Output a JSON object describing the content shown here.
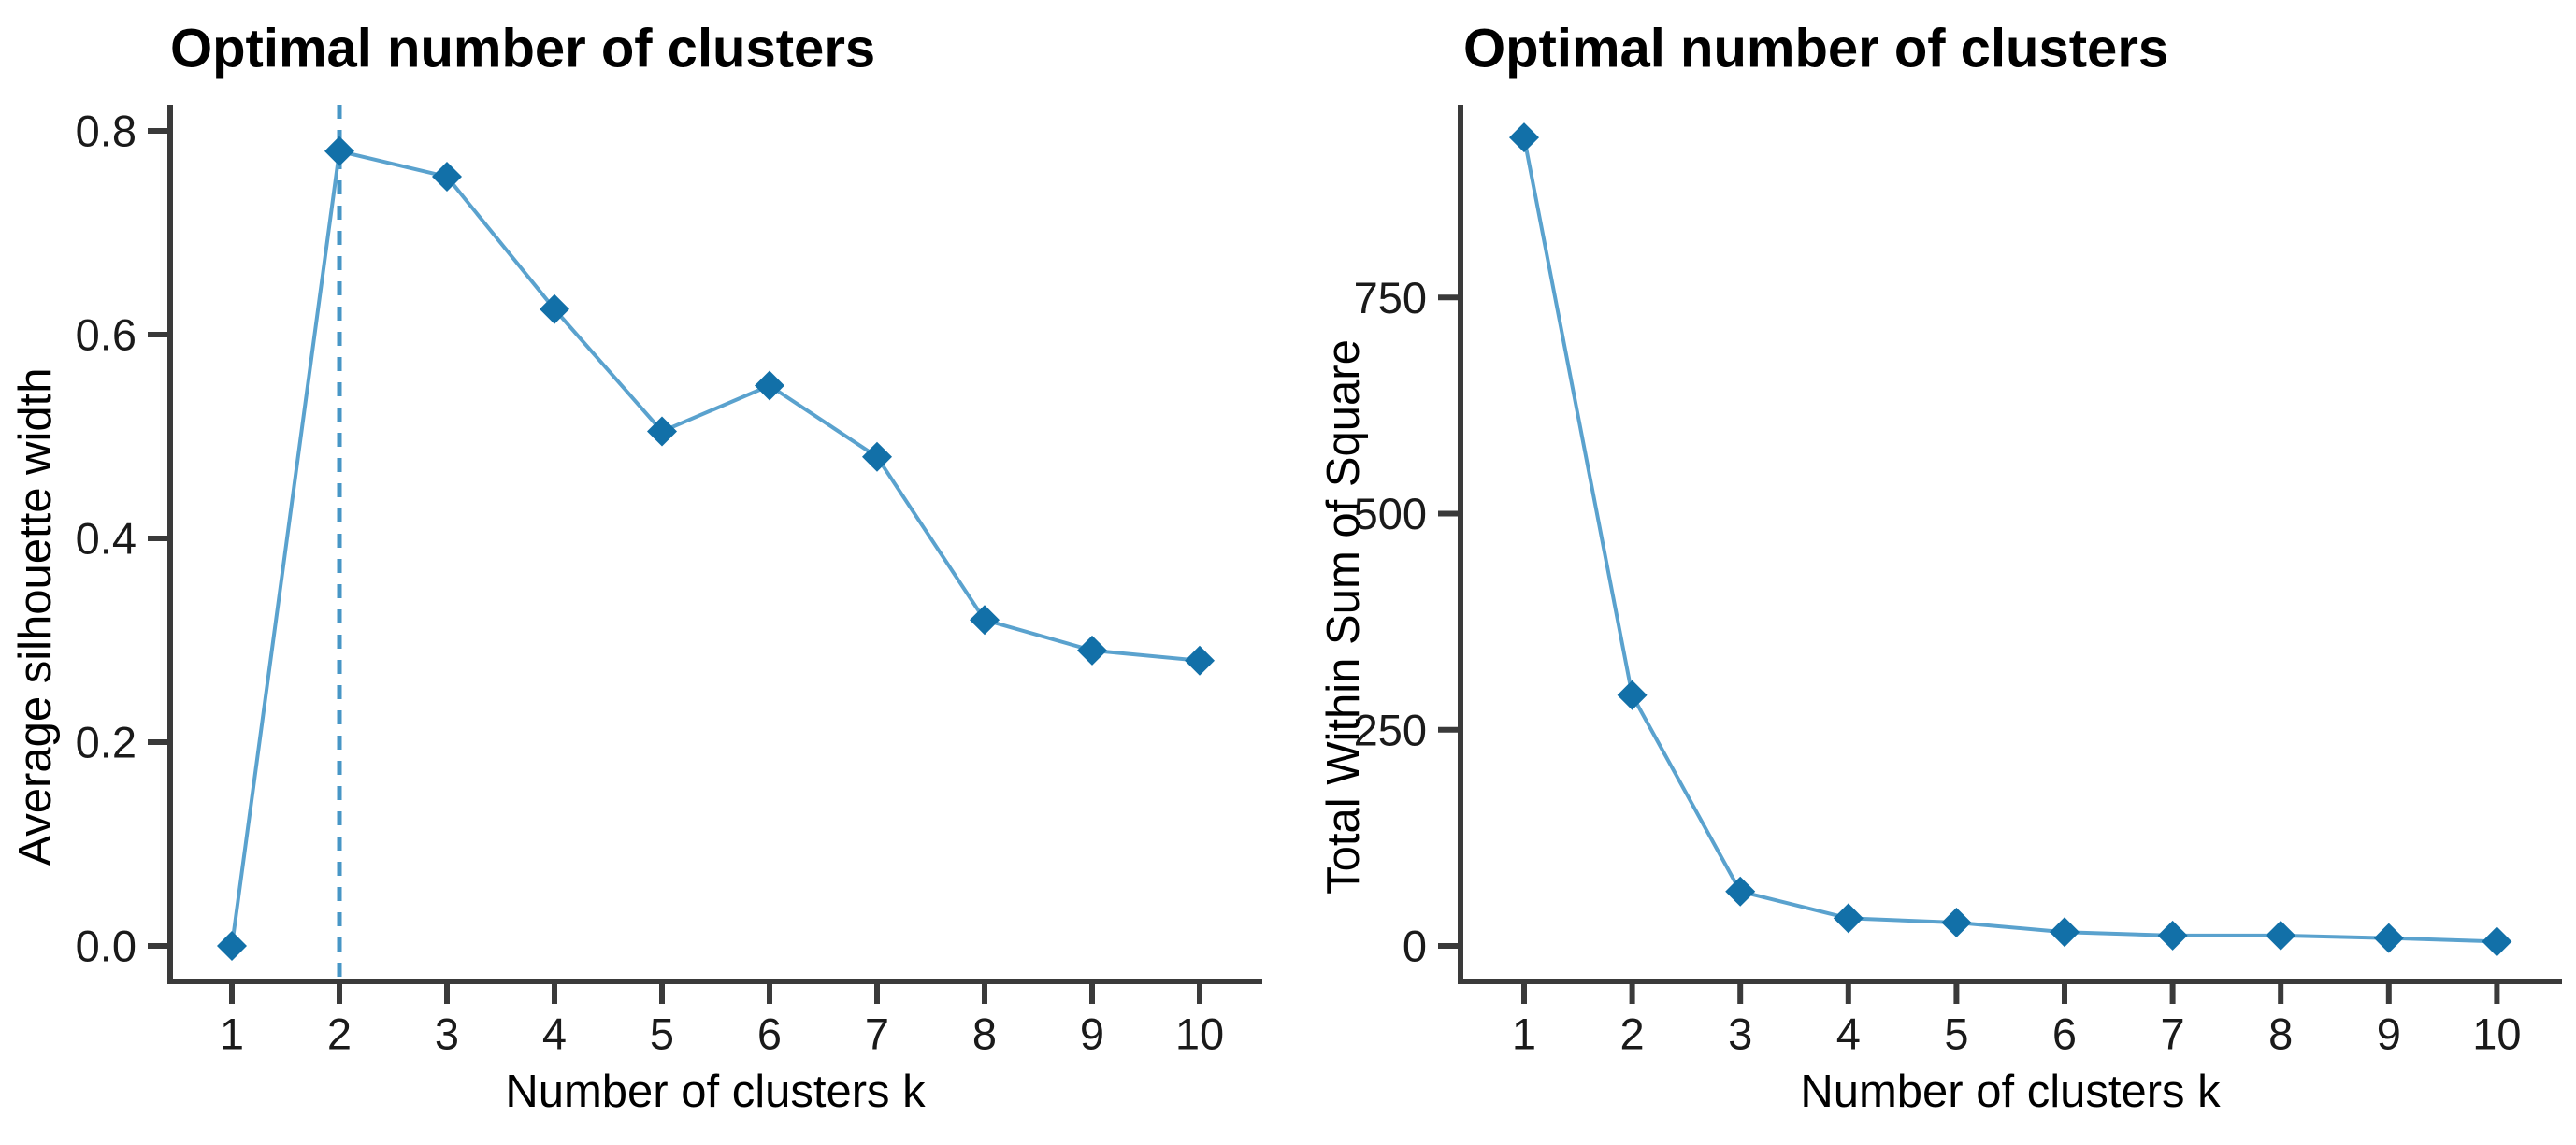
{
  "figure": {
    "background": "#ffffff",
    "description_colors": {
      "line": "#5aa2ce",
      "marker": "#1270a8",
      "vline": "#4796c6",
      "axis": "#3a3a3a",
      "tick_text": "#1a1a1a",
      "title_text": "#000000"
    }
  },
  "chart_data": [
    {
      "type": "line",
      "title": "Optimal number of clusters",
      "xlabel": "Number of clusters k",
      "ylabel": "Average silhouette width",
      "x": [
        1,
        2,
        3,
        4,
        5,
        6,
        7,
        8,
        9,
        10
      ],
      "y": [
        0.0,
        0.78,
        0.755,
        0.625,
        0.505,
        0.55,
        0.48,
        0.32,
        0.29,
        0.28
      ],
      "xtick_labels": [
        "1",
        "2",
        "3",
        "4",
        "5",
        "6",
        "7",
        "8",
        "9",
        "10"
      ],
      "ytick_values": [
        0.0,
        0.2,
        0.4,
        0.6,
        0.8
      ],
      "ytick_labels": [
        "0.0",
        "0.2",
        "0.4",
        "0.6",
        "0.8"
      ],
      "ylim": [
        0,
        0.8
      ],
      "grid": false,
      "legend": "none",
      "marker": "diamond",
      "optimal_k_vline": 2,
      "vline_style": "dashed",
      "colors": {
        "line": "#5aa2ce",
        "marker": "#1270a8",
        "vline": "#4796c6",
        "axis": "#3a3a3a",
        "tick_text": "#1a1a1a",
        "title_text": "#000000"
      }
    },
    {
      "type": "line",
      "title": "Optimal number of clusters",
      "xlabel": "Number of clusters k",
      "ylabel": "Total Within Sum of Square",
      "x": [
        1,
        2,
        3,
        4,
        5,
        6,
        7,
        8,
        9,
        10
      ],
      "y": [
        935,
        290,
        63,
        32,
        27,
        16,
        12,
        12,
        9,
        5
      ],
      "xtick_labels": [
        "1",
        "2",
        "3",
        "4",
        "5",
        "6",
        "7",
        "8",
        "9",
        "10"
      ],
      "ytick_values": [
        0,
        250,
        500,
        750
      ],
      "ytick_labels": [
        "0",
        "250",
        "500",
        "750"
      ],
      "ylim": [
        0,
        950
      ],
      "grid": false,
      "legend": "none",
      "marker": "diamond",
      "optimal_k_vline": null,
      "vline_style": null,
      "colors": {
        "line": "#5aa2ce",
        "marker": "#1270a8",
        "vline": "#4796c6",
        "axis": "#3a3a3a",
        "tick_text": "#1a1a1a",
        "title_text": "#000000"
      }
    }
  ]
}
